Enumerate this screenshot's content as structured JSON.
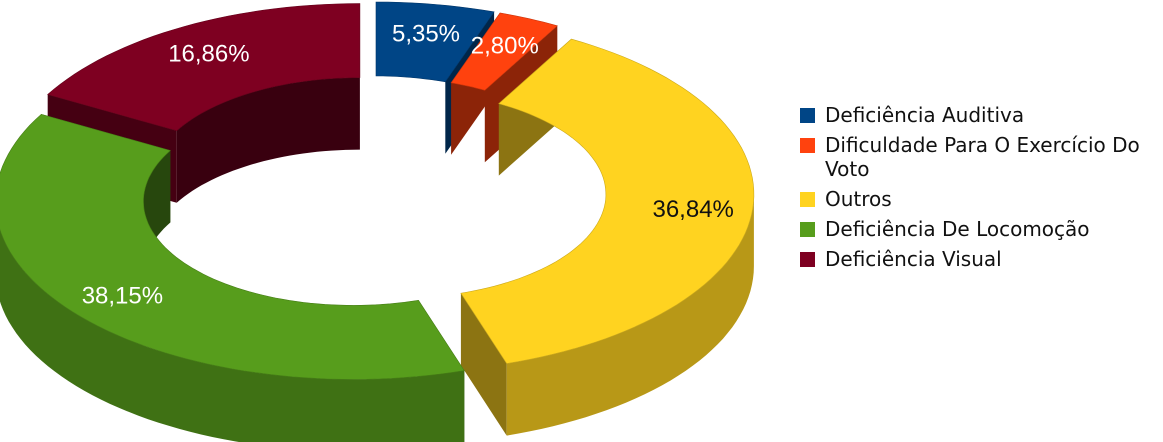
{
  "chart_data": {
    "type": "pie",
    "variant": "3d-donut-exploded",
    "title": "",
    "slices": [
      {
        "name": "Deficiência Auditiva",
        "value": 5.35,
        "label": "5,35%",
        "color": "#004586"
      },
      {
        "name": "Dificuldade Para O Exercício Do Voto",
        "value": 2.8,
        "label": "2,80%",
        "color": "#ff420e"
      },
      {
        "name": "Outros",
        "value": 36.84,
        "label": "36,84%",
        "color": "#ffd320"
      },
      {
        "name": "Deficiência De Locomoção",
        "value": 38.15,
        "label": "38,15%",
        "color": "#579d1c"
      },
      {
        "name": "Deficiência Visual",
        "value": 16.86,
        "label": "16,86%",
        "color": "#7e0021"
      }
    ],
    "legend_position": "right",
    "legend_order": [
      0,
      1,
      2,
      3,
      4
    ]
  }
}
